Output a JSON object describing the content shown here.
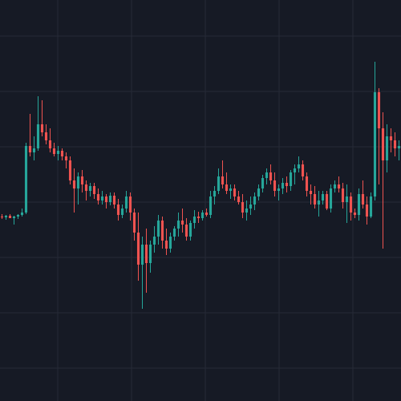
{
  "chart_data": {
    "type": "candlestick",
    "up_color": "#26a69a",
    "down_color": "#ef5350",
    "background": "#161a25",
    "grid_color": "#262a36",
    "xlim": [
      -0.5,
      99.5
    ],
    "ylim": [
      0,
      500
    ],
    "grid": true,
    "xticks": [
      13.9,
      32.3,
      50.7,
      69.1,
      87.5
    ],
    "yticks": [
      41,
      110,
      179,
      248,
      317,
      386,
      455
    ],
    "ohlc": [
      [
        230,
        233,
        227,
        229
      ],
      [
        229,
        232,
        226,
        231
      ],
      [
        231,
        233,
        228,
        228
      ],
      [
        228,
        231,
        220,
        230
      ],
      [
        230,
        233,
        227,
        232
      ],
      [
        232,
        240,
        230,
        235
      ],
      [
        235,
        322,
        233,
        318
      ],
      [
        318,
        358,
        305,
        310
      ],
      [
        310,
        330,
        300,
        315
      ],
      [
        315,
        380,
        312,
        345
      ],
      [
        345,
        375,
        330,
        335
      ],
      [
        335,
        345,
        320,
        325
      ],
      [
        325,
        340,
        310,
        315
      ],
      [
        315,
        322,
        305,
        308
      ],
      [
        308,
        318,
        300,
        312
      ],
      [
        312,
        315,
        300,
        305
      ],
      [
        305,
        310,
        290,
        300
      ],
      [
        300,
        305,
        270,
        275
      ],
      [
        275,
        290,
        235,
        265
      ],
      [
        265,
        285,
        245,
        280
      ],
      [
        280,
        288,
        260,
        270
      ],
      [
        270,
        275,
        250,
        262
      ],
      [
        262,
        272,
        255,
        268
      ],
      [
        268,
        272,
        252,
        258
      ],
      [
        258,
        265,
        245,
        250
      ],
      [
        250,
        262,
        245,
        255
      ],
      [
        255,
        258,
        240,
        248
      ],
      [
        248,
        260,
        244,
        256
      ],
      [
        256,
        260,
        240,
        245
      ],
      [
        245,
        252,
        225,
        232
      ],
      [
        232,
        245,
        228,
        240
      ],
      [
        240,
        262,
        235,
        255
      ],
      [
        255,
        260,
        225,
        235
      ],
      [
        235,
        240,
        200,
        210
      ],
      [
        210,
        235,
        150,
        170
      ],
      [
        170,
        205,
        115,
        195
      ],
      [
        195,
        215,
        135,
        172
      ],
      [
        172,
        200,
        160,
        195
      ],
      [
        195,
        218,
        185,
        205
      ],
      [
        205,
        232,
        195,
        225
      ],
      [
        225,
        230,
        190,
        200
      ],
      [
        200,
        215,
        182,
        190
      ],
      [
        190,
        210,
        185,
        205
      ],
      [
        205,
        218,
        200,
        215
      ],
      [
        215,
        235,
        205,
        225
      ],
      [
        225,
        240,
        210,
        220
      ],
      [
        220,
        228,
        200,
        205
      ],
      [
        205,
        225,
        200,
        222
      ],
      [
        222,
        238,
        215,
        230
      ],
      [
        230,
        236,
        222,
        228
      ],
      [
        228,
        238,
        225,
        235
      ],
      [
        235,
        240,
        230,
        232
      ],
      [
        232,
        262,
        228,
        255
      ],
      [
        255,
        268,
        245,
        262
      ],
      [
        262,
        290,
        258,
        280
      ],
      [
        280,
        300,
        265,
        270
      ],
      [
        270,
        285,
        258,
        262
      ],
      [
        262,
        270,
        252,
        265
      ],
      [
        265,
        270,
        250,
        255
      ],
      [
        255,
        262,
        245,
        248
      ],
      [
        248,
        258,
        228,
        235
      ],
      [
        235,
        250,
        225,
        240
      ],
      [
        240,
        255,
        232,
        245
      ],
      [
        245,
        260,
        238,
        255
      ],
      [
        255,
        270,
        250,
        265
      ],
      [
        265,
        282,
        260,
        278
      ],
      [
        278,
        290,
        270,
        285
      ],
      [
        285,
        295,
        270,
        275
      ],
      [
        275,
        285,
        255,
        262
      ],
      [
        262,
        270,
        250,
        265
      ],
      [
        265,
        278,
        258,
        272
      ],
      [
        272,
        280,
        260,
        268
      ],
      [
        268,
        288,
        262,
        285
      ],
      [
        285,
        295,
        270,
        290
      ],
      [
        290,
        305,
        285,
        295
      ],
      [
        295,
        300,
        275,
        280
      ],
      [
        280,
        285,
        255,
        262
      ],
      [
        262,
        270,
        245,
        258
      ],
      [
        258,
        268,
        240,
        245
      ],
      [
        245,
        262,
        230,
        250
      ],
      [
        250,
        262,
        245,
        258
      ],
      [
        258,
        262,
        238,
        240
      ],
      [
        240,
        270,
        235,
        265
      ],
      [
        265,
        275,
        260,
        270
      ],
      [
        270,
        280,
        260,
        265
      ],
      [
        265,
        272,
        240,
        248
      ],
      [
        248,
        270,
        222,
        255
      ],
      [
        255,
        260,
        225,
        235
      ],
      [
        235,
        240,
        228,
        232
      ],
      [
        232,
        265,
        225,
        258
      ],
      [
        258,
        275,
        240,
        245
      ],
      [
        245,
        255,
        220,
        230
      ],
      [
        230,
        260,
        228,
        255
      ],
      [
        255,
        423,
        250,
        385
      ],
      [
        385,
        390,
        270,
        340
      ],
      [
        340,
        360,
        190,
        300
      ],
      [
        300,
        345,
        285,
        330
      ],
      [
        330,
        340,
        310,
        325
      ],
      [
        325,
        335,
        305,
        315
      ],
      [
        315,
        325,
        300,
        318
      ]
    ]
  }
}
